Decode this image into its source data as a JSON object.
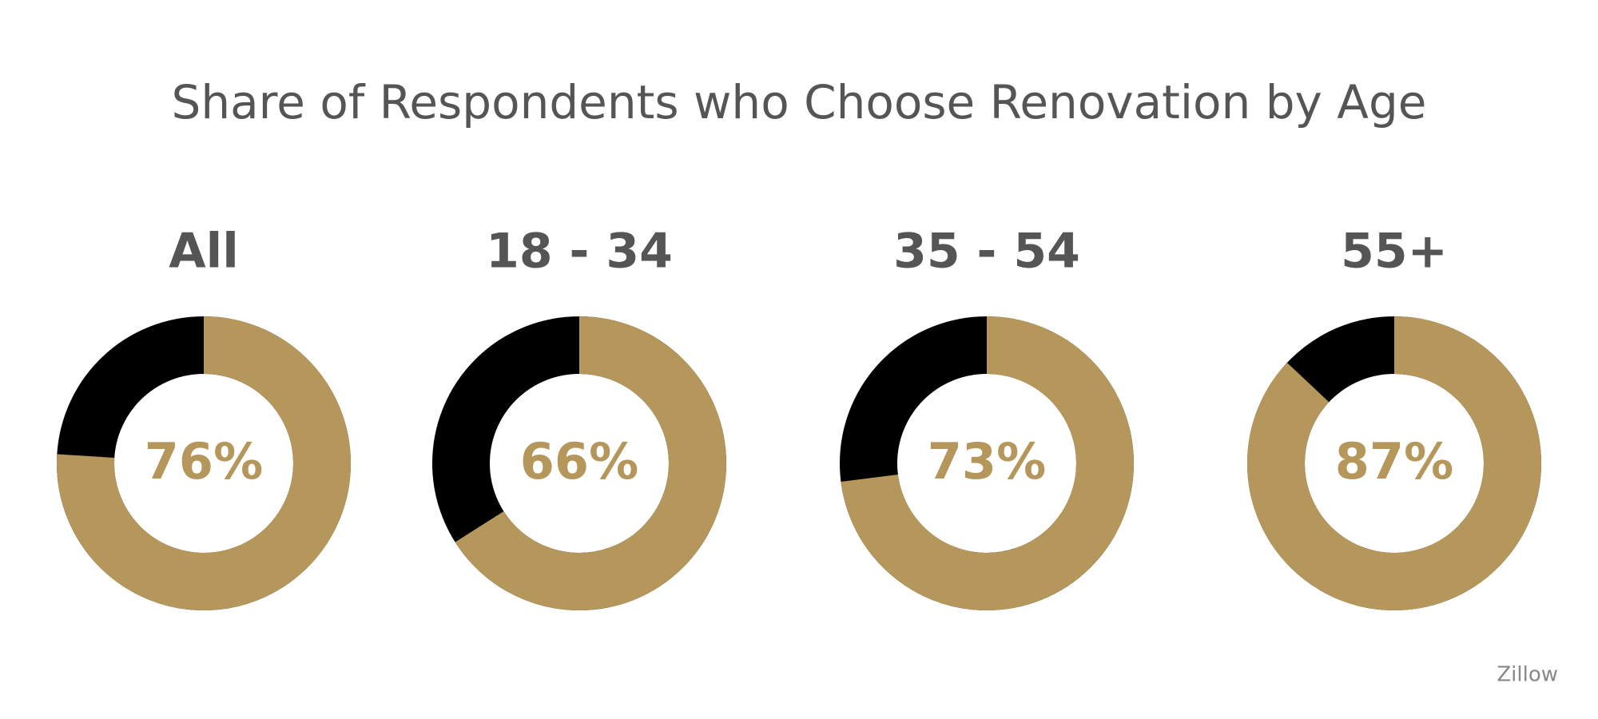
{
  "title": "Share of Respondents who Choose Renovation by Age",
  "source": "Zillow",
  "chart_data": [
    {
      "type": "donut",
      "title": "All",
      "values": [
        76
      ],
      "value_labels": [
        "76%"
      ],
      "colors": [
        "#b5975b",
        "#000000"
      ]
    },
    {
      "type": "donut",
      "title": "18 - 34",
      "values": [
        66
      ],
      "value_labels": [
        "66%"
      ],
      "colors": [
        "#b5975b",
        "#000000"
      ]
    },
    {
      "type": "donut",
      "title": "35 - 54",
      "values": [
        73
      ],
      "value_labels": [
        "73%"
      ],
      "colors": [
        "#b5975b",
        "#000000"
      ]
    },
    {
      "type": "donut",
      "title": "55+",
      "values": [
        87
      ],
      "value_labels": [
        "87%"
      ],
      "colors": [
        "#b5975b",
        "#000000"
      ]
    }
  ]
}
